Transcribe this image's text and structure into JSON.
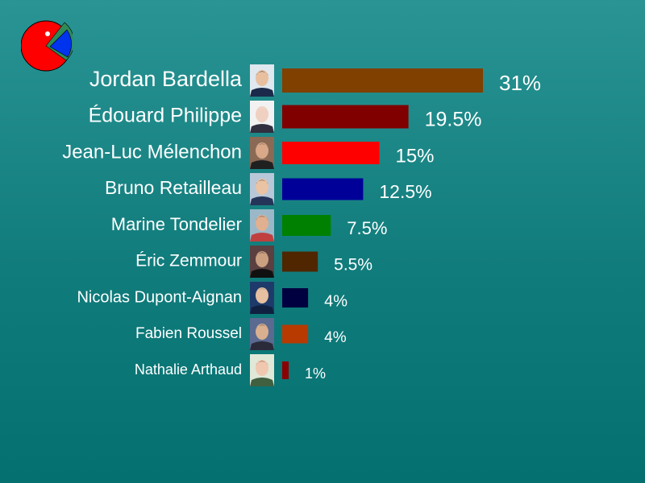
{
  "logo": {
    "icon": "pacman-pie-icon",
    "colors": [
      "#ff0000",
      "#0033ee",
      "#2e8b57"
    ]
  },
  "chart_data": {
    "type": "bar",
    "orientation": "horizontal",
    "title": "",
    "xlabel": "",
    "ylabel": "",
    "xlim": [
      0,
      31
    ],
    "grid": false,
    "legend": "none",
    "unit": "%",
    "categories": [
      "Jordan Bardella",
      "Édouard Philippe",
      "Jean-Luc Mélenchon",
      "Bruno Retailleau",
      "Marine Tondelier",
      "Éric Zemmour",
      "Nicolas Dupont-Aignan",
      "Fabien Roussel",
      "Nathalie Arthaud"
    ],
    "values": [
      31,
      19.5,
      15,
      12.5,
      7.5,
      5.5,
      4,
      4,
      1
    ],
    "value_labels": [
      "31%",
      "19.5%",
      "15%",
      "12.5%",
      "7.5%",
      "5.5%",
      "4%",
      "4%",
      "1%"
    ],
    "colors": [
      "#7f4000",
      "#800000",
      "#ff0000",
      "#000099",
      "#008000",
      "#4f2600",
      "#000040",
      "#b83a00",
      "#8b0000"
    ],
    "portraits": [
      "portrait-icon",
      "portrait-icon",
      "portrait-icon",
      "portrait-icon",
      "portrait-icon",
      "portrait-icon",
      "portrait-icon",
      "portrait-icon",
      "portrait-icon"
    ]
  }
}
